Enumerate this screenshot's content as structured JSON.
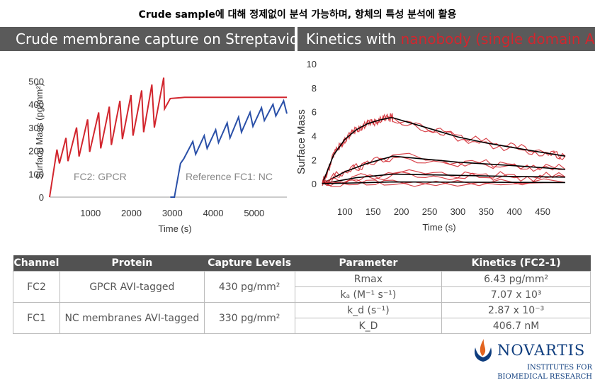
{
  "header": "Crude sample에 대해 정제없이 분석 가능하며, 항체의 특성 분석에 활용",
  "banners": {
    "left": "Crude membrane capture on Streptavidin",
    "right_prefix": "Kinetics with ",
    "right_highlight": "nanobody (single domain Ab)"
  },
  "colors": {
    "red": "#d2262e",
    "blue": "#2a50a8",
    "banner": "#5a5a5a",
    "fit": "#000000",
    "logo_blue": "#0e3d7e"
  },
  "chart_data": [
    {
      "type": "line",
      "xlabel": "Time (s)",
      "ylabel": "Surface Mass (pg/mm²)",
      "xlim": [
        0,
        5800
      ],
      "ylim": [
        0,
        550
      ],
      "xticks": [
        "1000",
        "2000",
        "3000",
        "4000",
        "5000"
      ],
      "yticks": [
        "0",
        "100",
        "200",
        "300",
        "400",
        "500"
      ],
      "grid": false,
      "annotations": [
        "FC2: GPCR",
        "Reference FC1: NC"
      ],
      "series": [
        {
          "name": "FC2: GPCR",
          "color": "#d2262e",
          "x": [
            0,
            180,
            240,
            400,
            450,
            660,
            720,
            930,
            980,
            1200,
            1250,
            1460,
            1510,
            1720,
            1780,
            1990,
            2040,
            2250,
            2300,
            2500,
            2560,
            2790,
            2810,
            2950,
            3300,
            4000,
            5000,
            5800
          ],
          "y": [
            0,
            205,
            145,
            255,
            155,
            300,
            175,
            335,
            195,
            365,
            210,
            390,
            225,
            415,
            250,
            440,
            265,
            460,
            280,
            485,
            300,
            515,
            380,
            425,
            430,
            430,
            430,
            430
          ]
        },
        {
          "name": "Reference FC1: NC",
          "color": "#2a50a8",
          "x": [
            2950,
            3050,
            3200,
            3280,
            3500,
            3570,
            3780,
            3850,
            4060,
            4130,
            4340,
            4410,
            4620,
            4690,
            4900,
            4970,
            5180,
            5250,
            5460,
            5530,
            5720,
            5800
          ],
          "y": [
            0,
            0,
            145,
            165,
            240,
            185,
            265,
            210,
            290,
            235,
            320,
            255,
            345,
            280,
            365,
            305,
            385,
            330,
            400,
            350,
            415,
            360
          ]
        }
      ]
    },
    {
      "type": "line",
      "xlabel": "Time (s)",
      "ylabel": "Surface Mass",
      "xlim": [
        60,
        490
      ],
      "ylim": [
        -1,
        10
      ],
      "xticks": [
        "100",
        "150",
        "200",
        "250",
        "300",
        "350",
        "400",
        "450"
      ],
      "yticks": [
        "0",
        "2",
        "4",
        "6",
        "8",
        "10"
      ],
      "grid": false,
      "series": [
        {
          "name": "fit",
          "color": "#000000",
          "x": [
            60,
            80,
            100,
            120,
            140,
            160,
            180,
            185
          ],
          "y": [
            0,
            2.4,
            3.7,
            4.5,
            5.0,
            5.3,
            5.5,
            5.5
          ]
        },
        {
          "name": "fit",
          "color": "#000000",
          "x": [
            185,
            250,
            300,
            350,
            400,
            450,
            490
          ],
          "y": [
            5.5,
            4.6,
            3.9,
            3.4,
            3.0,
            2.6,
            2.3
          ]
        },
        {
          "name": "fit",
          "color": "#000000",
          "x": [
            60,
            100,
            140,
            185,
            300,
            400,
            490
          ],
          "y": [
            0,
            1.0,
            1.7,
            2.3,
            1.8,
            1.5,
            1.2
          ]
        },
        {
          "name": "fit",
          "color": "#000000",
          "x": [
            60,
            120,
            185,
            300,
            400,
            490
          ],
          "y": [
            0,
            0.5,
            0.8,
            0.7,
            0.6,
            0.55
          ]
        },
        {
          "name": "fit",
          "color": "#000000",
          "x": [
            60,
            185,
            490
          ],
          "y": [
            0,
            0.15,
            0.1
          ]
        }
      ]
    }
  ],
  "table": {
    "headers": [
      "Channel",
      "Protein",
      "Capture Levels",
      "Parameter",
      "Kinetics (FC2-1)"
    ],
    "groups": [
      {
        "channel": "FC2",
        "protein": "GPCR AVI-tagged",
        "capture": "430 pg/mm²"
      },
      {
        "channel": "FC1",
        "protein": "NC membranes AVI-tagged",
        "capture": "330 pg/mm²"
      }
    ],
    "params": [
      {
        "name": "Rmax",
        "value": "6.43 pg/mm²"
      },
      {
        "name": "kₐ (M⁻¹ s⁻¹)",
        "value": "7.07 x 10³"
      },
      {
        "name": "k_d (s⁻¹)",
        "value": "2.87 x 10⁻³"
      },
      {
        "name": "K_D",
        "value": "406.7 nM"
      }
    ]
  },
  "logo": {
    "word": "NOVARTIS",
    "line1": "INSTITUTES FOR",
    "line2": "BIOMEDICAL RESEARCH"
  }
}
